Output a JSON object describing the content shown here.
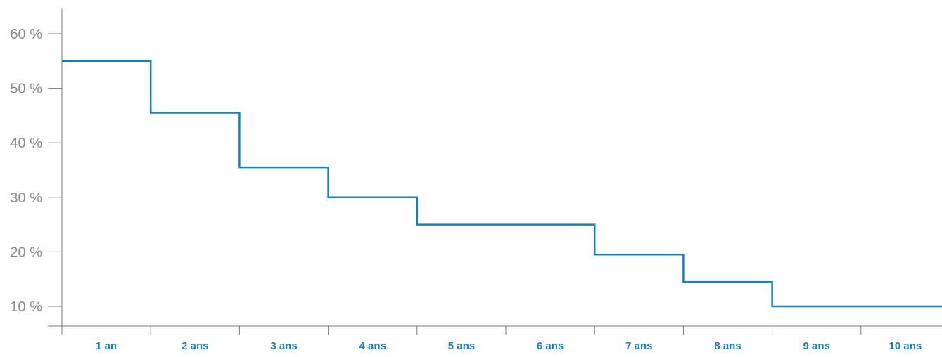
{
  "chart_data": {
    "type": "line",
    "step": true,
    "title": "",
    "xlabel": "",
    "ylabel": "",
    "categories": [
      "1 an",
      "2 ans",
      "3 ans",
      "4 ans",
      "5 ans",
      "6 ans",
      "7 ans",
      "8 ans",
      "9 ans",
      "10 ans"
    ],
    "values": [
      55,
      45.5,
      35.5,
      30,
      25,
      25,
      19.5,
      14.5,
      10,
      10
    ],
    "ylim": [
      5,
      65
    ],
    "yticks": [
      10,
      20,
      30,
      40,
      50,
      60
    ],
    "ytick_labels": [
      "10 %",
      "20 %",
      "30 %",
      "40 %",
      "50 %",
      "60 %"
    ],
    "grid": false,
    "legend": "none",
    "colors": {
      "line": "#1b7fb0",
      "axis": "#7a7a7a",
      "ytick_text": "#8a8a8a",
      "xtick_text": "#1b7fb0"
    }
  }
}
